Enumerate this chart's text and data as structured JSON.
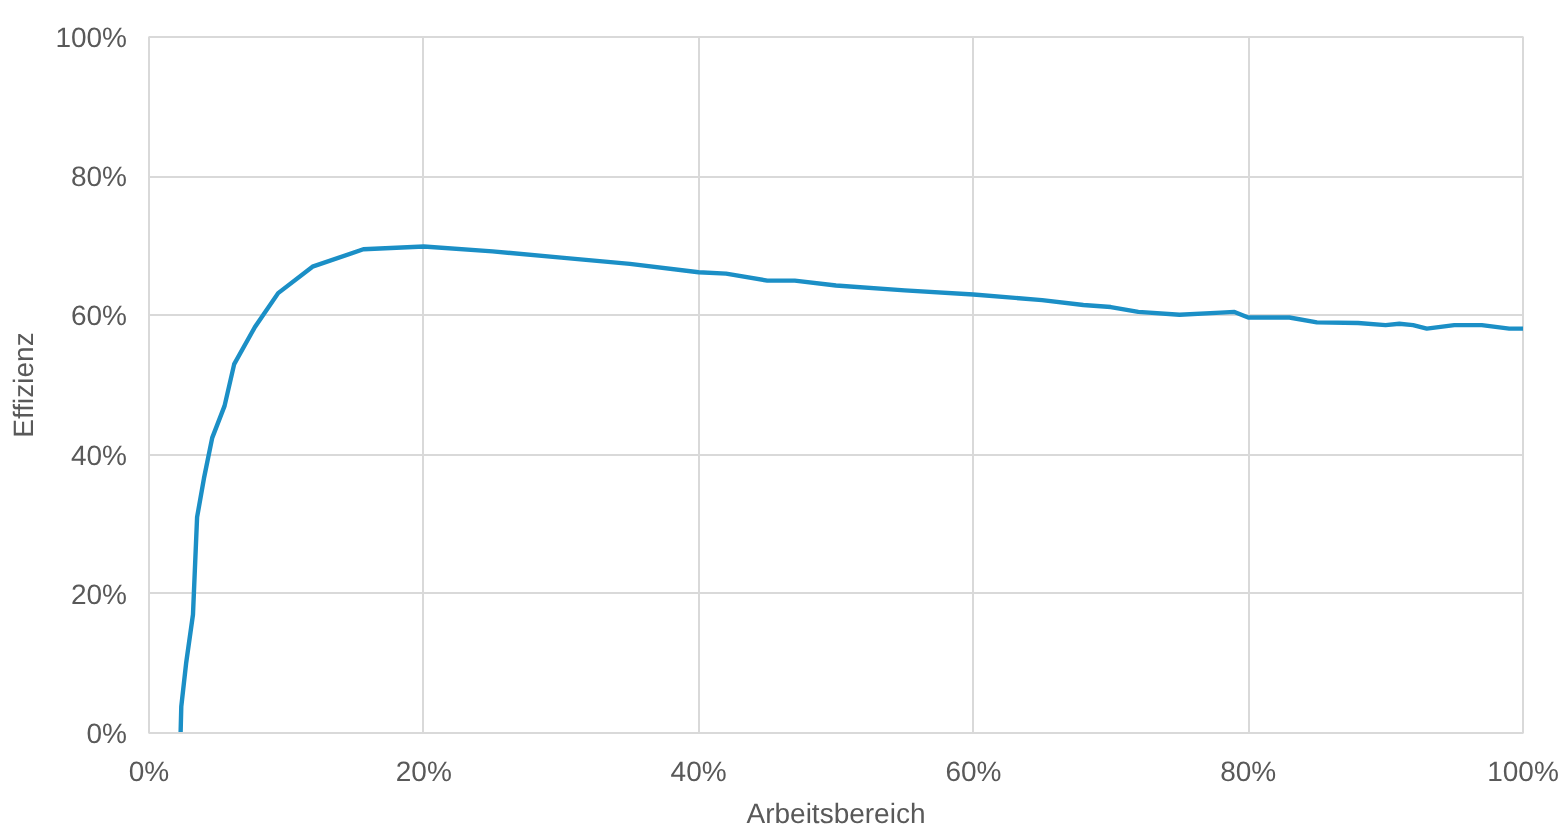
{
  "chart_data": {
    "type": "line",
    "xlabel": "Arbeitsbereich",
    "ylabel": "Effizienz",
    "series": [
      {
        "color": "#1b8fc6",
        "x": [
          2.3,
          2.35,
          2.7,
          3.2,
          3.5,
          4.0,
          4.6,
          5.5,
          6.2,
          7.7,
          9.4,
          11.9,
          15.6,
          20,
          25,
          30,
          35,
          40,
          42,
          45,
          47,
          50,
          55,
          60,
          65,
          68,
          70,
          72,
          75,
          78,
          79,
          80,
          83,
          85,
          88,
          90,
          91,
          92,
          93,
          95,
          97,
          99,
          100
        ],
        "values": [
          0,
          3.8,
          10,
          17,
          31,
          36.6,
          42.4,
          47,
          53,
          58.3,
          63.2,
          67,
          69.5,
          69.9,
          69.2,
          68.3,
          67.4,
          66.2,
          66.0,
          65.0,
          65.0,
          64.3,
          63.6,
          63.0,
          62.2,
          61.5,
          61.2,
          60.5,
          60.1,
          60.4,
          60.5,
          59.7,
          59.7,
          59.0,
          58.9,
          58.6,
          58.8,
          58.6,
          58.1,
          58.6,
          58.6,
          58.1,
          58.1
        ]
      }
    ],
    "xlim": [
      0,
      100
    ],
    "ylim": [
      0,
      100
    ],
    "xticks": [
      {
        "value": 0,
        "label": "0%"
      },
      {
        "value": 20,
        "label": "20%"
      },
      {
        "value": 40,
        "label": "40%"
      },
      {
        "value": 60,
        "label": "60%"
      },
      {
        "value": 80,
        "label": "80%"
      },
      {
        "value": 100,
        "label": "100%"
      }
    ],
    "yticks": [
      {
        "value": 0,
        "label": "0%"
      },
      {
        "value": 20,
        "label": "20%"
      },
      {
        "value": 40,
        "label": "40%"
      },
      {
        "value": 60,
        "label": "60%"
      },
      {
        "value": 80,
        "label": "80%"
      },
      {
        "value": 100,
        "label": "100%"
      }
    ],
    "grid": true
  }
}
